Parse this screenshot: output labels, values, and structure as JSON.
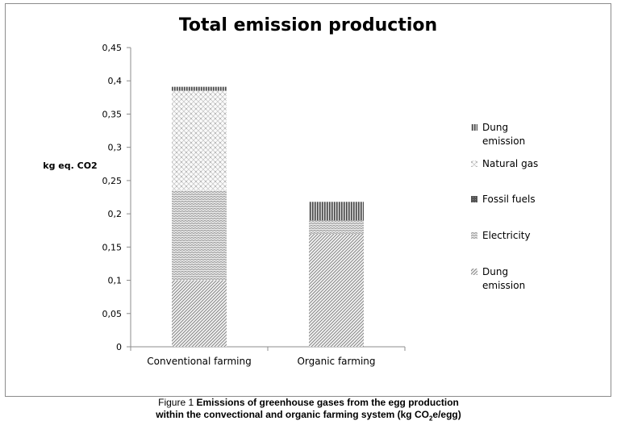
{
  "chart_data": {
    "type": "bar",
    "stacked": true,
    "title": "Total emission production",
    "ylabel": "kg eq. CO2",
    "xlabel": "",
    "ylim": [
      0,
      0.45
    ],
    "y_ticks": [
      "0",
      "0,05",
      "0,1",
      "0,15",
      "0,2",
      "0,25",
      "0,3",
      "0,35",
      "0,4",
      "0,45"
    ],
    "grid": false,
    "legend_position": "right",
    "categories": [
      "Conventional farming",
      "Organic farming"
    ],
    "series": [
      {
        "name": "Dung emission",
        "values": [
          0.1,
          0.17
        ],
        "pattern": "diag-dense"
      },
      {
        "name": "Electricity",
        "values": [
          0.135,
          0.02
        ],
        "pattern": "dots-dense"
      },
      {
        "name": "Fossil fuels",
        "values": [
          0.0,
          0.0
        ],
        "pattern": "dark"
      },
      {
        "name": "Natural gas",
        "values": [
          0.15,
          0.0
        ],
        "pattern": "sparkle"
      },
      {
        "name": "Dung emission",
        "values": [
          0.006,
          0.028
        ],
        "pattern": "vertical"
      }
    ],
    "legend_order": [
      4,
      3,
      2,
      1,
      0
    ]
  },
  "caption": {
    "prefix": "Figure 1",
    "line1": "Emissions of greenhouse gases from the egg production",
    "line2_a": "within the convectional and organic farming system (kg CO",
    "line2_sub": "2",
    "line2_b": "e/egg)"
  }
}
